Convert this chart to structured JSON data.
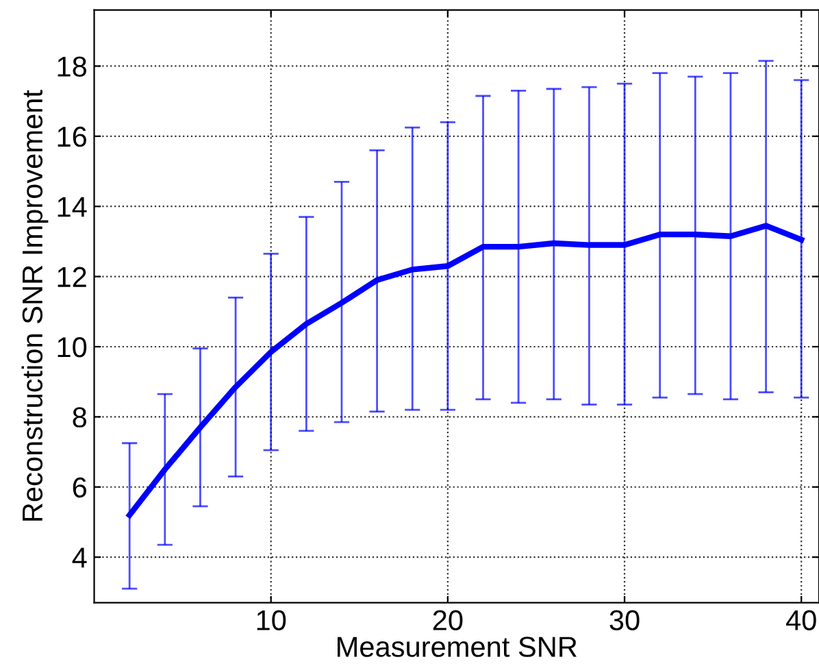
{
  "chart_data": {
    "type": "line",
    "xlabel": "Measurement SNR",
    "ylabel": "Reconstruction SNR Improvement",
    "x": [
      2,
      4,
      6,
      8,
      10,
      12,
      14,
      16,
      18,
      20,
      22,
      24,
      26,
      28,
      30,
      32,
      34,
      36,
      38,
      40
    ],
    "series": [
      {
        "color": "#0000ff",
        "values": [
          5.2,
          6.5,
          7.7,
          8.85,
          9.85,
          10.65,
          11.25,
          11.9,
          12.2,
          12.3,
          12.85,
          12.85,
          12.95,
          12.9,
          12.9,
          13.2,
          13.2,
          13.15,
          13.45,
          13.05
        ],
        "errors": [
          [
            3.1,
            7.25
          ],
          [
            4.35,
            8.65
          ],
          [
            5.45,
            9.95
          ],
          [
            6.3,
            11.4
          ],
          [
            7.05,
            12.65
          ],
          [
            7.6,
            13.7
          ],
          [
            7.85,
            14.7
          ],
          [
            8.15,
            15.6
          ],
          [
            8.2,
            16.25
          ],
          [
            8.2,
            16.4
          ],
          [
            8.5,
            17.15
          ],
          [
            8.4,
            17.3
          ],
          [
            8.5,
            17.35
          ],
          [
            8.35,
            17.4
          ],
          [
            8.35,
            17.5
          ],
          [
            8.55,
            17.8
          ],
          [
            8.65,
            17.7
          ],
          [
            8.5,
            17.8
          ],
          [
            8.7,
            18.15
          ],
          [
            8.55,
            17.6
          ]
        ]
      }
    ],
    "xlim": [
      0,
      41
    ],
    "xticks": [
      10,
      20,
      30,
      40
    ],
    "ylim": [
      2.7,
      19.6
    ],
    "yticks": [
      4,
      6,
      8,
      10,
      12,
      14,
      16,
      18
    ],
    "grid": true,
    "line_style": "solid",
    "marker": "none"
  }
}
